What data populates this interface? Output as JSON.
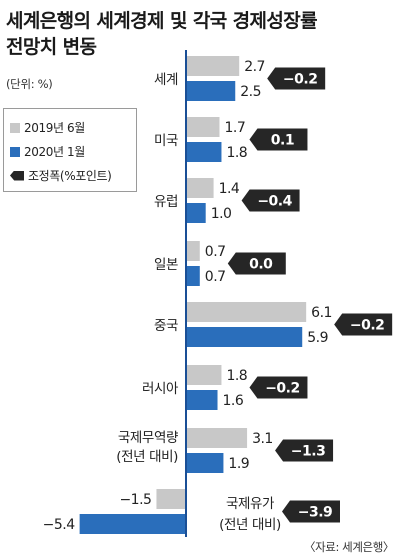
{
  "title_line1": "세계은행의 세계경제 및 각국 경제성장률",
  "title_line2": "전망치 변동",
  "unit": "(단위: %)",
  "legend": {
    "jun2019": "2019년 6월",
    "jan2020": "2020년 1월",
    "adjustment": "조정폭(%포인트)"
  },
  "source": "〈자료: 세계은행〉",
  "colors": {
    "gray": "#c8c8c8",
    "blue": "#2a6ebb",
    "adj": "#262626",
    "axis": "#1a4f96"
  },
  "chart_data": {
    "type": "bar",
    "orientation": "horizontal",
    "categories": [
      [
        "세계"
      ],
      [
        "미국"
      ],
      [
        "유럽"
      ],
      [
        "일본"
      ],
      [
        "중국"
      ],
      [
        "러시아"
      ],
      [
        "국제무역량",
        "(전년 대비)"
      ],
      [
        "국제유가",
        "(전년 대비)"
      ]
    ],
    "series": [
      {
        "name": "2019년 6월",
        "values": [
          2.7,
          1.7,
          1.4,
          0.7,
          6.1,
          1.8,
          3.1,
          -1.5
        ]
      },
      {
        "name": "2020년 1월",
        "values": [
          2.5,
          1.8,
          1.0,
          0.7,
          5.9,
          1.6,
          1.9,
          -5.4
        ]
      }
    ],
    "adjustment": {
      "name": "조정폭(%포인트)",
      "values": [
        "−0.2",
        "0.1",
        "−0.4",
        "0.0",
        "−0.2",
        "−0.2",
        "−1.3",
        "−3.9"
      ]
    },
    "value_labels": {
      "jun2019": [
        "2.7",
        "1.7",
        "1.4",
        "0.7",
        "6.1",
        "1.8",
        "3.1",
        "−1.5"
      ],
      "jan2020": [
        "2.5",
        "1.8",
        "1.0",
        "0.7",
        "5.9",
        "1.6",
        "1.9",
        "−5.4"
      ]
    },
    "xlim": [
      -5.4,
      6.1
    ]
  }
}
